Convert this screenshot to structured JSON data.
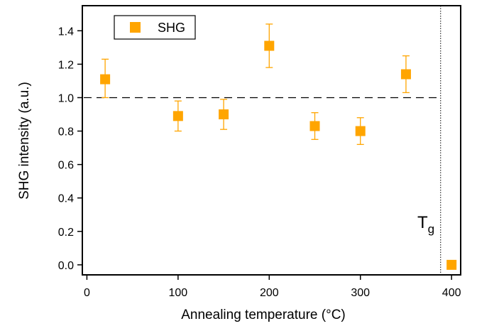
{
  "chart_data": {
    "type": "scatter",
    "xlabel": "Annealing temperature (°C)",
    "ylabel": "SHG intensity (a.u.)",
    "xlim": [
      -5,
      410
    ],
    "ylim": [
      -0.06,
      1.55
    ],
    "x_ticks": [
      0,
      100,
      200,
      300,
      400
    ],
    "y_ticks": [
      0.0,
      0.2,
      0.4,
      0.6,
      0.8,
      1.0,
      1.2,
      1.4
    ],
    "x_tick_labels": [
      "0",
      "100",
      "200",
      "300",
      "400"
    ],
    "y_tick_labels": [
      "0.0",
      "0.2",
      "0.4",
      "0.6",
      "0.8",
      "1.0",
      "1.2",
      "1.4"
    ],
    "grid": false,
    "legend_position": "top-left",
    "series": [
      {
        "name": "SHG",
        "color": "#FFA500",
        "marker": "square",
        "points": [
          {
            "x": 20,
            "y": 1.11,
            "err_low": 0.11,
            "err_high": 0.12
          },
          {
            "x": 100,
            "y": 0.89,
            "err_low": 0.09,
            "err_high": 0.09
          },
          {
            "x": 150,
            "y": 0.9,
            "err_low": 0.09,
            "err_high": 0.09
          },
          {
            "x": 200,
            "y": 1.31,
            "err_low": 0.13,
            "err_high": 0.13
          },
          {
            "x": 250,
            "y": 0.83,
            "err_low": 0.08,
            "err_high": 0.08
          },
          {
            "x": 300,
            "y": 0.8,
            "err_low": 0.08,
            "err_high": 0.08
          },
          {
            "x": 350,
            "y": 1.14,
            "err_low": 0.11,
            "err_high": 0.11
          },
          {
            "x": 400,
            "y": 0.0,
            "err_low": 0,
            "err_high": 0
          }
        ]
      }
    ],
    "reference_line": {
      "y": 1.0,
      "style": "dashed"
    },
    "vertical_line": {
      "x": 388,
      "style": "dotted",
      "label": "T",
      "label_sub": "g"
    }
  }
}
